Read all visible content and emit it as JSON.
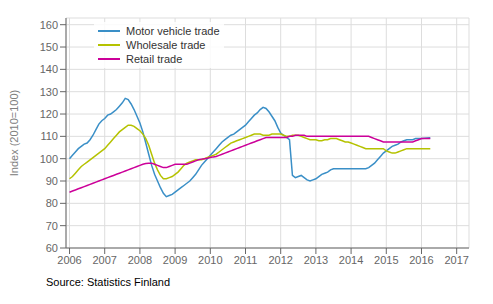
{
  "chart_data": {
    "type": "line",
    "y_label": "Index (2010=100)",
    "source": "Source: Statistics Finland",
    "xlim": [
      2005.9,
      2017.35
    ],
    "ylim": [
      60,
      163
    ],
    "yticks": [
      60,
      70,
      80,
      90,
      100,
      110,
      120,
      130,
      140,
      150,
      160
    ],
    "xticks": [
      2006,
      2007,
      2008,
      2009,
      2010,
      2011,
      2012,
      2013,
      2014,
      2015,
      2016,
      2017
    ],
    "grid": true,
    "legend": "upper left",
    "x": [
      2006,
      2006.083333333,
      2006.166666667,
      2006.25,
      2006.333333333,
      2006.416666667,
      2006.5,
      2006.583333333,
      2006.666666667,
      2006.75,
      2006.833333333,
      2006.916666667,
      2007,
      2007.083333333,
      2007.166666667,
      2007.25,
      2007.333333333,
      2007.416666667,
      2007.5,
      2007.583333333,
      2007.666666667,
      2007.75,
      2007.833333333,
      2007.916666667,
      2008,
      2008.083333333,
      2008.166666667,
      2008.25,
      2008.333333333,
      2008.416666667,
      2008.5,
      2008.583333333,
      2008.666666667,
      2008.75,
      2008.833333333,
      2008.916666667,
      2009,
      2009.083333333,
      2009.166666667,
      2009.25,
      2009.333333333,
      2009.416666667,
      2009.5,
      2009.583333333,
      2009.666666667,
      2009.75,
      2009.833333333,
      2009.916666667,
      2010,
      2010.083333333,
      2010.166666667,
      2010.25,
      2010.333333333,
      2010.416666667,
      2010.5,
      2010.583333333,
      2010.666666667,
      2010.75,
      2010.833333333,
      2010.916666667,
      2011,
      2011.083333333,
      2011.166666667,
      2011.25,
      2011.333333333,
      2011.416666667,
      2011.5,
      2011.583333333,
      2011.666666667,
      2011.75,
      2011.833333333,
      2011.916666667,
      2012,
      2012.083333333,
      2012.166666667,
      2012.25,
      2012.333333333,
      2012.416666667,
      2012.5,
      2012.583333333,
      2012.666666667,
      2012.75,
      2012.833333333,
      2012.916666667,
      2013,
      2013.083333333,
      2013.166666667,
      2013.25,
      2013.333333333,
      2013.416666667,
      2013.5,
      2013.583333333,
      2013.666666667,
      2013.75,
      2013.833333333,
      2013.916666667,
      2014,
      2014.083333333,
      2014.166666667,
      2014.25,
      2014.333333333,
      2014.416666667,
      2014.5,
      2014.583333333,
      2014.666666667,
      2014.75,
      2014.833333333,
      2014.916666667,
      2015,
      2015.083333333,
      2015.166666667,
      2015.25,
      2015.333333333,
      2015.416666667,
      2015.5,
      2015.583333333,
      2015.666666667,
      2015.75,
      2015.833333333,
      2015.916666667,
      2016,
      2016.083333333,
      2016.166666667,
      2016.25
    ],
    "series": [
      {
        "name": "Motor vehicle trade",
        "color": "#3a8fc7",
        "values": [
          100.0,
          101.5,
          103.0,
          104.5,
          105.5,
          106.5,
          107.0,
          108.5,
          110.5,
          113.0,
          115.5,
          117.0,
          118.0,
          119.5,
          120.0,
          121.0,
          122.0,
          123.5,
          125.0,
          127.0,
          126.5,
          124.5,
          122.0,
          119.0,
          116.0,
          112.0,
          107.0,
          102.0,
          97.0,
          93.0,
          90.0,
          87.0,
          84.5,
          83.0,
          83.5,
          84.0,
          85.0,
          86.0,
          87.0,
          88.0,
          89.0,
          90.0,
          91.5,
          93.0,
          95.0,
          97.0,
          98.5,
          100.0,
          101.5,
          103.0,
          104.5,
          106.0,
          107.5,
          108.5,
          109.5,
          110.5,
          111.0,
          112.0,
          113.0,
          114.0,
          115.0,
          116.5,
          118.0,
          119.5,
          120.5,
          122.0,
          123.0,
          122.5,
          121.0,
          119.0,
          117.0,
          114.0,
          111.5,
          110.5,
          109.5,
          108.5,
          92.5,
          91.5,
          92.0,
          92.5,
          91.5,
          90.5,
          90.0,
          90.5,
          91.0,
          92.0,
          93.0,
          93.5,
          94.0,
          95.0,
          95.5,
          95.5,
          95.5,
          95.5,
          95.5,
          95.5,
          95.5,
          95.5,
          95.5,
          95.5,
          95.5,
          95.5,
          96.0,
          97.0,
          98.0,
          99.5,
          101.0,
          102.5,
          103.5,
          104.5,
          105.5,
          106.0,
          106.5,
          107.5,
          108.0,
          108.5,
          108.5,
          108.5,
          109.0,
          109.0,
          109.0,
          109.2,
          109.3,
          109.4
        ]
      },
      {
        "name": "Wholesale trade",
        "color": "#b5c200",
        "values": [
          91.0,
          92.0,
          93.5,
          95.0,
          96.5,
          97.5,
          98.5,
          99.5,
          100.5,
          101.5,
          102.5,
          103.5,
          104.5,
          106.0,
          107.5,
          109.0,
          110.5,
          112.0,
          113.0,
          114.0,
          115.0,
          115.0,
          114.5,
          113.5,
          112.5,
          111.0,
          109.0,
          106.0,
          102.0,
          98.0,
          95.0,
          92.5,
          91.0,
          91.0,
          91.5,
          92.0,
          93.0,
          94.0,
          95.5,
          97.0,
          98.0,
          98.5,
          99.0,
          99.5,
          99.5,
          99.5,
          100.0,
          100.5,
          101.0,
          101.5,
          102.0,
          103.0,
          104.0,
          105.0,
          106.0,
          107.0,
          107.5,
          108.0,
          108.5,
          109.0,
          109.5,
          110.0,
          110.5,
          111.0,
          111.0,
          111.0,
          110.5,
          110.5,
          110.5,
          111.0,
          111.0,
          111.0,
          111.0,
          110.5,
          110.0,
          110.0,
          110.5,
          110.5,
          110.5,
          110.0,
          109.5,
          109.0,
          108.5,
          108.5,
          108.5,
          108.0,
          108.0,
          108.5,
          108.5,
          109.0,
          109.0,
          109.0,
          108.5,
          108.0,
          107.5,
          107.5,
          107.0,
          106.5,
          106.0,
          105.5,
          105.0,
          104.5,
          104.5,
          104.5,
          104.5,
          104.5,
          104.5,
          104.5,
          103.5,
          103.0,
          102.5,
          102.5,
          103.0,
          103.5,
          104.0,
          104.5,
          104.5,
          104.5,
          104.5,
          104.5,
          104.5,
          104.5,
          104.5,
          104.5
        ]
      },
      {
        "name": "Retail trade",
        "color": "#cc0099",
        "values": [
          85.0,
          85.5,
          86.0,
          86.5,
          87.0,
          87.5,
          88.0,
          88.5,
          89.0,
          89.5,
          90.0,
          90.5,
          91.0,
          91.5,
          92.0,
          92.5,
          93.0,
          93.5,
          94.0,
          94.5,
          95.0,
          95.5,
          96.0,
          96.5,
          97.0,
          97.5,
          97.8,
          98.0,
          98.0,
          97.5,
          97.0,
          96.5,
          96.0,
          96.0,
          96.5,
          97.0,
          97.5,
          97.5,
          97.5,
          97.5,
          97.5,
          98.0,
          98.5,
          99.0,
          99.5,
          99.8,
          100.0,
          100.2,
          100.5,
          100.8,
          101.0,
          101.5,
          102.0,
          102.5,
          103.0,
          103.5,
          104.0,
          104.5,
          105.0,
          105.5,
          106.0,
          106.5,
          107.0,
          107.5,
          108.0,
          108.5,
          109.0,
          109.5,
          109.5,
          109.5,
          109.5,
          109.5,
          109.5,
          109.5,
          109.5,
          110.0,
          110.0,
          110.5,
          110.5,
          110.5,
          110.5,
          110.0,
          110.0,
          110.0,
          110.0,
          110.0,
          110.0,
          110.0,
          110.0,
          110.0,
          110.0,
          110.0,
          110.0,
          110.0,
          110.0,
          110.0,
          110.0,
          110.0,
          110.0,
          110.0,
          110.0,
          110.0,
          110.0,
          109.5,
          109.0,
          108.5,
          108.0,
          107.5,
          107.5,
          107.5,
          107.5,
          107.5,
          107.5,
          107.5,
          107.5,
          107.5,
          107.5,
          107.5,
          108.0,
          108.5,
          109.0,
          109.0,
          109.0,
          109.0
        ]
      }
    ]
  }
}
